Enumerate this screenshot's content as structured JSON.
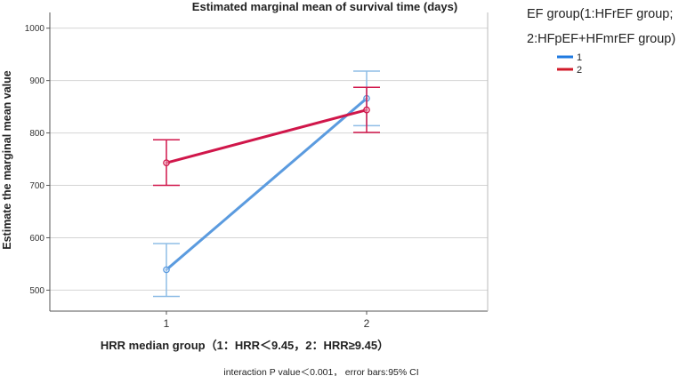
{
  "chart_data": {
    "type": "line",
    "title": "Estimated marginal mean of survival time (days)",
    "xlabel": "HRR median group（1：HRR＜9.45，2：HRR≥9.45）",
    "ylabel": "Estimate the marginal mean value",
    "footnote": "interaction P value＜0.001， error bars:95% CI",
    "categories": [
      "1",
      "2"
    ],
    "ylim": [
      460,
      1030
    ],
    "yticks": [
      500,
      600,
      700,
      800,
      900,
      1000
    ],
    "grid": true,
    "legend": {
      "title_line1": "EF group(1:HFrEF group;",
      "title_line2": "2:HFpEF+HFmrEF group)",
      "placement": "top-right"
    },
    "series": [
      {
        "name": "1",
        "color": "#5b9bdf",
        "legend_color": "#1f7ae0",
        "values": [
          539,
          866
        ],
        "ci_lower": [
          488,
          814
        ],
        "ci_upper": [
          589,
          918
        ]
      },
      {
        "name": "2",
        "color": "#d0164a",
        "legend_color": "#d11a2a",
        "values": [
          743,
          844
        ],
        "ci_lower": [
          700,
          801
        ],
        "ci_upper": [
          787,
          887
        ]
      }
    ]
  }
}
